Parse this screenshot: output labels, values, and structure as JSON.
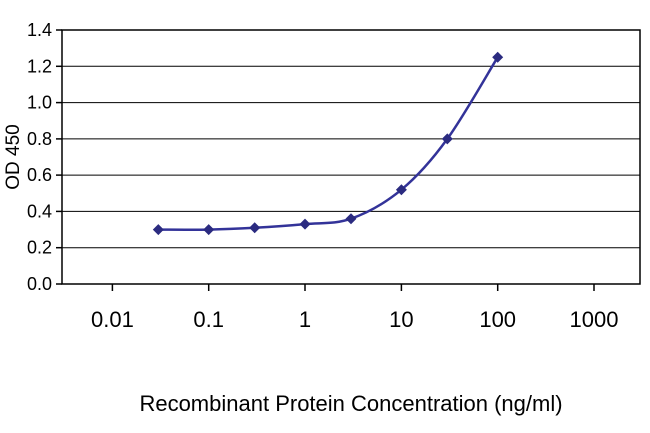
{
  "figure": {
    "background": "#ffffff"
  },
  "chart_data": {
    "type": "line",
    "title": "",
    "xlabel": "Recombinant Protein Concentration (ng/ml)",
    "ylabel": "OD 450",
    "x_scale": "log",
    "y_scale": "linear",
    "grid": "horizontal",
    "legend": "none",
    "gridline_color": "#000000",
    "axis_color": "#000000",
    "plot_background": "#ffffff",
    "x_axis": {
      "min": 0.003,
      "max": 3000,
      "tick_values": [
        0.01,
        0.1,
        1,
        10,
        100,
        1000
      ],
      "tick_labels": [
        "0.01",
        "0.1",
        "1",
        "10",
        "100",
        "1000"
      ]
    },
    "y_axis": {
      "min": 0,
      "max": 1.4,
      "tick_values": [
        0,
        0.2,
        0.4,
        0.6,
        0.8,
        1.0,
        1.2,
        1.4
      ],
      "tick_labels": [
        "0.0",
        "0.2",
        "0.4",
        "0.6",
        "0.8",
        "1.0",
        "1.2",
        "1.4"
      ]
    },
    "series": [
      {
        "x": [
          0.03,
          0.1,
          0.3,
          1,
          3,
          10,
          30,
          100
        ],
        "y": [
          0.3,
          0.3,
          0.31,
          0.33,
          0.36,
          0.52,
          0.8,
          1.25
        ],
        "line_color": "#333399",
        "line_width": 2.5,
        "marker": "diamond",
        "marker_color": "#2b2b80",
        "marker_size": 11,
        "smoothed": true
      }
    ]
  }
}
